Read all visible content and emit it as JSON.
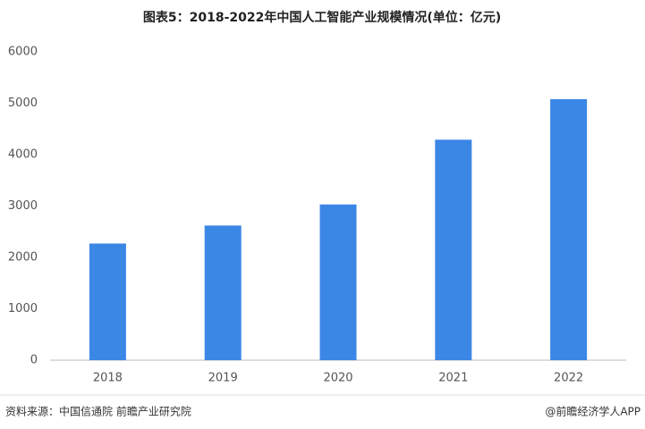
{
  "chart_data": {
    "type": "bar",
    "title": "图表5：2018-2022年中国人工智能产业规模情况(单位：亿元)",
    "categories": [
      "2018",
      "2019",
      "2020",
      "2021",
      "2022"
    ],
    "values": [
      2270,
      2620,
      3030,
      4290,
      5080
    ],
    "color": "#3b87e6",
    "ylim": [
      0,
      6000
    ],
    "yticks": [
      0,
      1000,
      2000,
      3000,
      4000,
      5000,
      6000
    ],
    "grid": false,
    "source": "资料来源：中国信通院 前瞻产业研究院",
    "credit": "@前瞻经济学人APP"
  }
}
